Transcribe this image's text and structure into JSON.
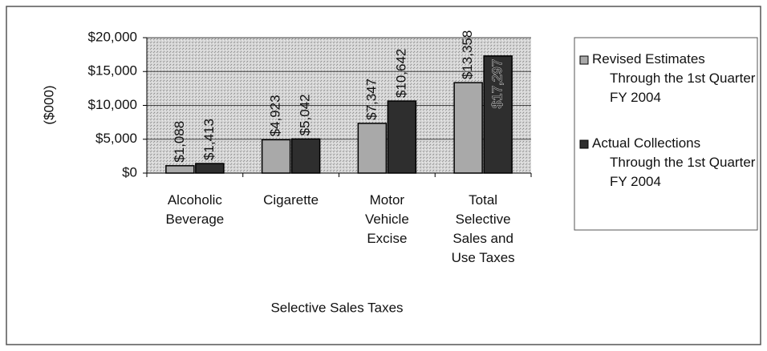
{
  "chart_data": {
    "type": "bar",
    "x_label": "Selective Sales Taxes",
    "y_label": "($000)",
    "categories": [
      "Alcoholic Beverage",
      "Cigarette",
      "Motor Vehicle Excise",
      "Total Selective Sales and Use Taxes"
    ],
    "series": [
      {
        "name": "Revised Estimates Through the 1st Quarter FY 2004",
        "color": "#a9a9a9",
        "values": [
          1088,
          4923,
          7347,
          13358
        ],
        "value_labels": [
          "$1,088",
          "$4,923",
          "$7,347",
          "$13,358"
        ]
      },
      {
        "name": "Actual Collections Through the 1st Quarter FY 2004",
        "color": "#2e2e2e",
        "values": [
          1413,
          5042,
          10642,
          17297
        ],
        "value_labels": [
          "$1,413",
          "$5,042",
          "$10,642",
          "$17,297"
        ]
      }
    ],
    "ylim": [
      0,
      20000
    ],
    "yticks": [
      {
        "value": 0,
        "label": "$0"
      },
      {
        "value": 5000,
        "label": "$5,000"
      },
      {
        "value": 10000,
        "label": "$10,000"
      },
      {
        "value": 15000,
        "label": "$15,000"
      },
      {
        "value": 20000,
        "label": "$20,000"
      }
    ],
    "grid": true,
    "legend": "right"
  }
}
